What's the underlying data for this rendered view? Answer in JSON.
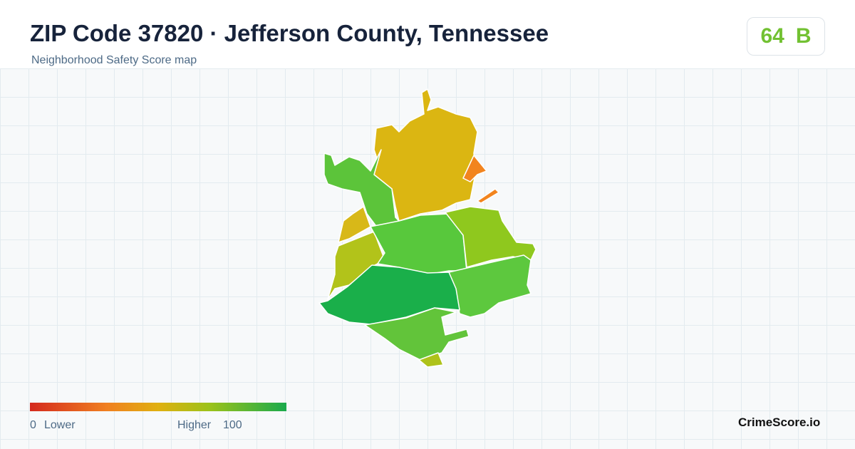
{
  "header": {
    "title": "ZIP Code 37820 · Jefferson County, Tennessee",
    "subtitle": "Neighborhood Safety Score map"
  },
  "score": {
    "value": 64,
    "grade": "B"
  },
  "legend": {
    "min": 0,
    "min_label": "Lower",
    "max_label": "Higher",
    "max": 100
  },
  "brand": "CrimeScore.io"
}
